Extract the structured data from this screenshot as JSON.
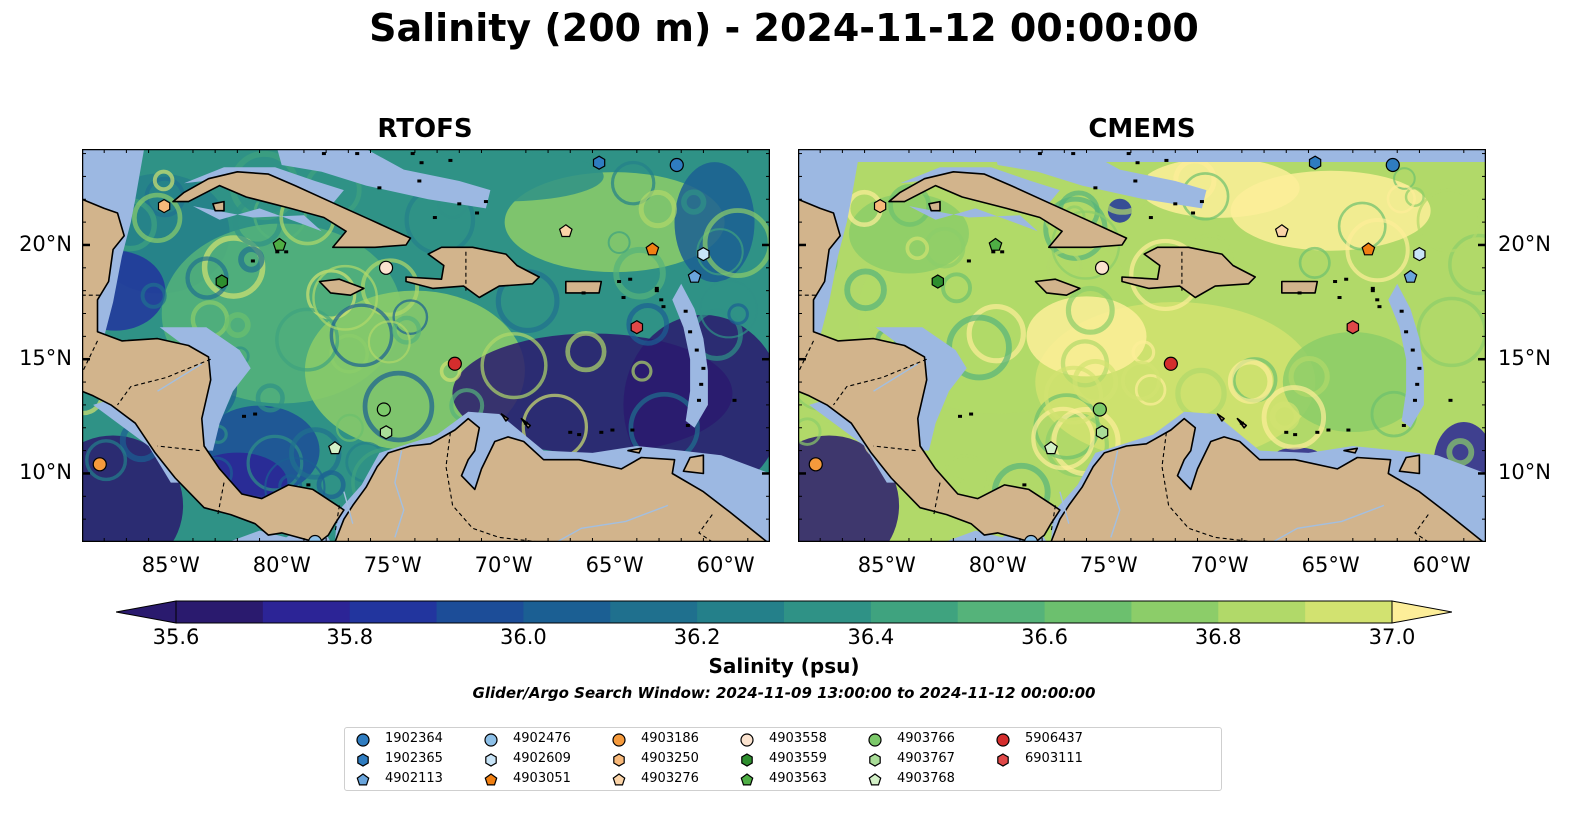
{
  "title": "Salinity (200 m) - 2024-11-12 00:00:00",
  "panels": [
    {
      "title": "RTOFS"
    },
    {
      "title": "CMEMS"
    }
  ],
  "map_extent": {
    "lon_min": -89,
    "lon_max": -58,
    "lat_min": 7,
    "lat_max": 24.2
  },
  "lon_ticks": [
    "85°W",
    "80°W",
    "75°W",
    "70°W",
    "65°W",
    "60°W"
  ],
  "lat_ticks": [
    "20°N",
    "15°N",
    "10°N"
  ],
  "colorbar": {
    "label": "Salinity (psu)",
    "min": 35.6,
    "max": 37.0,
    "step": 0.1,
    "tick_labels": [
      "35.6",
      "35.8",
      "36.0",
      "36.2",
      "36.4",
      "36.6",
      "36.8",
      "37.0"
    ],
    "extend": "both",
    "colors": [
      "#2a1a6e",
      "#2c2496",
      "#22359e",
      "#1c4d98",
      "#1b5f93",
      "#1f708e",
      "#24808a",
      "#2f9286",
      "#3fa37f",
      "#55b37a",
      "#6cc06e",
      "#8ccd69",
      "#b1d969",
      "#d2e270",
      "#fdee99"
    ]
  },
  "search_window": "Glider/Argo Search Window: 2024-11-09 13:00:00 to 2024-11-12 00:00:00",
  "legend": [
    {
      "id": "1902364",
      "marker": "circle",
      "color": "#2f7cc0"
    },
    {
      "id": "1902365",
      "marker": "hexagon",
      "color": "#2f7cc0"
    },
    {
      "id": "4902113",
      "marker": "pentagon",
      "color": "#6aa5dc"
    },
    {
      "id": "4902476",
      "marker": "circle",
      "color": "#8dc0e8"
    },
    {
      "id": "4902609",
      "marker": "hexagon",
      "color": "#c8e4f7"
    },
    {
      "id": "4903051",
      "marker": "pentagon",
      "color": "#f07f12"
    },
    {
      "id": "4903186",
      "marker": "circle",
      "color": "#f59a3c"
    },
    {
      "id": "4903250",
      "marker": "hexagon",
      "color": "#f8b97a"
    },
    {
      "id": "4903276",
      "marker": "pentagon",
      "color": "#fbd4a8"
    },
    {
      "id": "4903558",
      "marker": "circle",
      "color": "#fbe3cf"
    },
    {
      "id": "4903559",
      "marker": "hexagon",
      "color": "#2e8e2e"
    },
    {
      "id": "4903563",
      "marker": "pentagon",
      "color": "#4fae45"
    },
    {
      "id": "4903766",
      "marker": "circle",
      "color": "#7cc96a"
    },
    {
      "id": "4903767",
      "marker": "hexagon",
      "color": "#a9dd98"
    },
    {
      "id": "4903768",
      "marker": "pentagon",
      "color": "#d3f0c7"
    },
    {
      "id": "5906437",
      "marker": "circle",
      "color": "#d42d2d"
    },
    {
      "id": "6903111",
      "marker": "hexagon",
      "color": "#e04848"
    }
  ],
  "floats": [
    {
      "id": "1902364",
      "lon": -62.2,
      "lat": 23.5
    },
    {
      "id": "1902365",
      "lon": -65.7,
      "lat": 23.6
    },
    {
      "id": "4902113",
      "lon": -61.4,
      "lat": 18.6
    },
    {
      "id": "4902476",
      "lon": -78.5,
      "lat": 7.0
    },
    {
      "id": "4902609",
      "lon": -61.0,
      "lat": 19.6
    },
    {
      "id": "4903051",
      "lon": -63.3,
      "lat": 19.8
    },
    {
      "id": "4903186",
      "lon": -88.2,
      "lat": 10.4
    },
    {
      "id": "4903250",
      "lon": -85.3,
      "lat": 21.7
    },
    {
      "id": "4903276",
      "lon": -67.2,
      "lat": 20.6
    },
    {
      "id": "4903558",
      "lon": -75.3,
      "lat": 19.0
    },
    {
      "id": "4903559",
      "lon": -82.7,
      "lat": 18.4
    },
    {
      "id": "4903563",
      "lon": -80.1,
      "lat": 20.0
    },
    {
      "id": "4903766",
      "lon": -75.4,
      "lat": 12.8
    },
    {
      "id": "4903767",
      "lon": -75.3,
      "lat": 11.8
    },
    {
      "id": "4903768",
      "lon": -77.6,
      "lat": 11.1
    },
    {
      "id": "5906437",
      "lon": -72.2,
      "lat": 14.8
    },
    {
      "id": "6903111",
      "lon": -64.0,
      "lat": 16.4
    }
  ]
}
